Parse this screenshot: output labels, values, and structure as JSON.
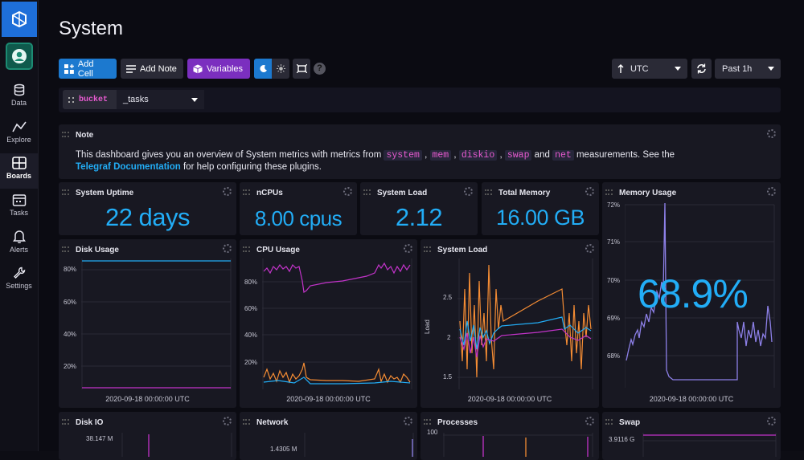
{
  "sidebar": {
    "items": [
      {
        "label": "Data",
        "icon": "database-icon"
      },
      {
        "label": "Explore",
        "icon": "explore-graph-icon"
      },
      {
        "label": "Boards",
        "icon": "dashboard-icon"
      },
      {
        "label": "Tasks",
        "icon": "calendar-icon"
      },
      {
        "label": "Alerts",
        "icon": "bell-icon"
      },
      {
        "label": "Settings",
        "icon": "wrench-icon"
      }
    ]
  },
  "header": {
    "title": "System",
    "add_cell": "Add Cell",
    "add_note": "Add Note",
    "variables": "Variables",
    "timezone": "UTC",
    "time_range": "Past 1h"
  },
  "filter": {
    "label": "bucket",
    "value": "_tasks"
  },
  "note": {
    "title": "Note",
    "text1": "This dashboard gives you an overview of System metrics with metrics from ",
    "m1": "system",
    "sep1": ",",
    "m2": "mem",
    "sep2": ",",
    "m3": "diskio",
    "sep3": ",",
    "m4": "swap",
    "and": "and",
    "m5": "net",
    "text2": " measurements. See the",
    "link": "Telegraf Documentation",
    "text3": " for help configuring these plugins."
  },
  "stats": [
    {
      "title": "System Uptime",
      "value": "22 days"
    },
    {
      "title": "nCPUs",
      "value": "8.00 cpus"
    },
    {
      "title": "System Load",
      "value": "2.12"
    },
    {
      "title": "Total Memory",
      "value": "16.00 GB"
    }
  ],
  "memory": {
    "title": "Memory Usage",
    "value": "68.9%",
    "yticks": [
      "72%",
      "71%",
      "70%",
      "69%",
      "68%"
    ],
    "xlabel": "2020-09-18 00:00:00 UTC"
  },
  "disk": {
    "title": "Disk Usage",
    "yticks": [
      "80%",
      "60%",
      "40%",
      "20%"
    ],
    "xlabel": "2020-09-18 00:00:00 UTC"
  },
  "cpu": {
    "title": "CPU Usage",
    "yticks": [
      "80%",
      "60%",
      "40%",
      "20%"
    ],
    "xlabel": "2020-09-18 00:00:00 UTC"
  },
  "load": {
    "title": "System Load",
    "yticks": [
      "2.5",
      "2",
      "1.5"
    ],
    "ylabel": "Load",
    "xlabel": "2020-09-18 00:00:00 UTC"
  },
  "bottom": [
    {
      "title": "Disk IO",
      "ytick": "38.147 M"
    },
    {
      "title": "Network",
      "ytick": "1.4305 M"
    },
    {
      "title": "Processes",
      "ytick": "100"
    },
    {
      "title": "Swap",
      "ytick": "3.9116 G"
    }
  ],
  "colors": {
    "accent": "#22adf6",
    "magenta": "#c233c9",
    "orange": "#f48c34",
    "lavender": "#8d80e8"
  }
}
